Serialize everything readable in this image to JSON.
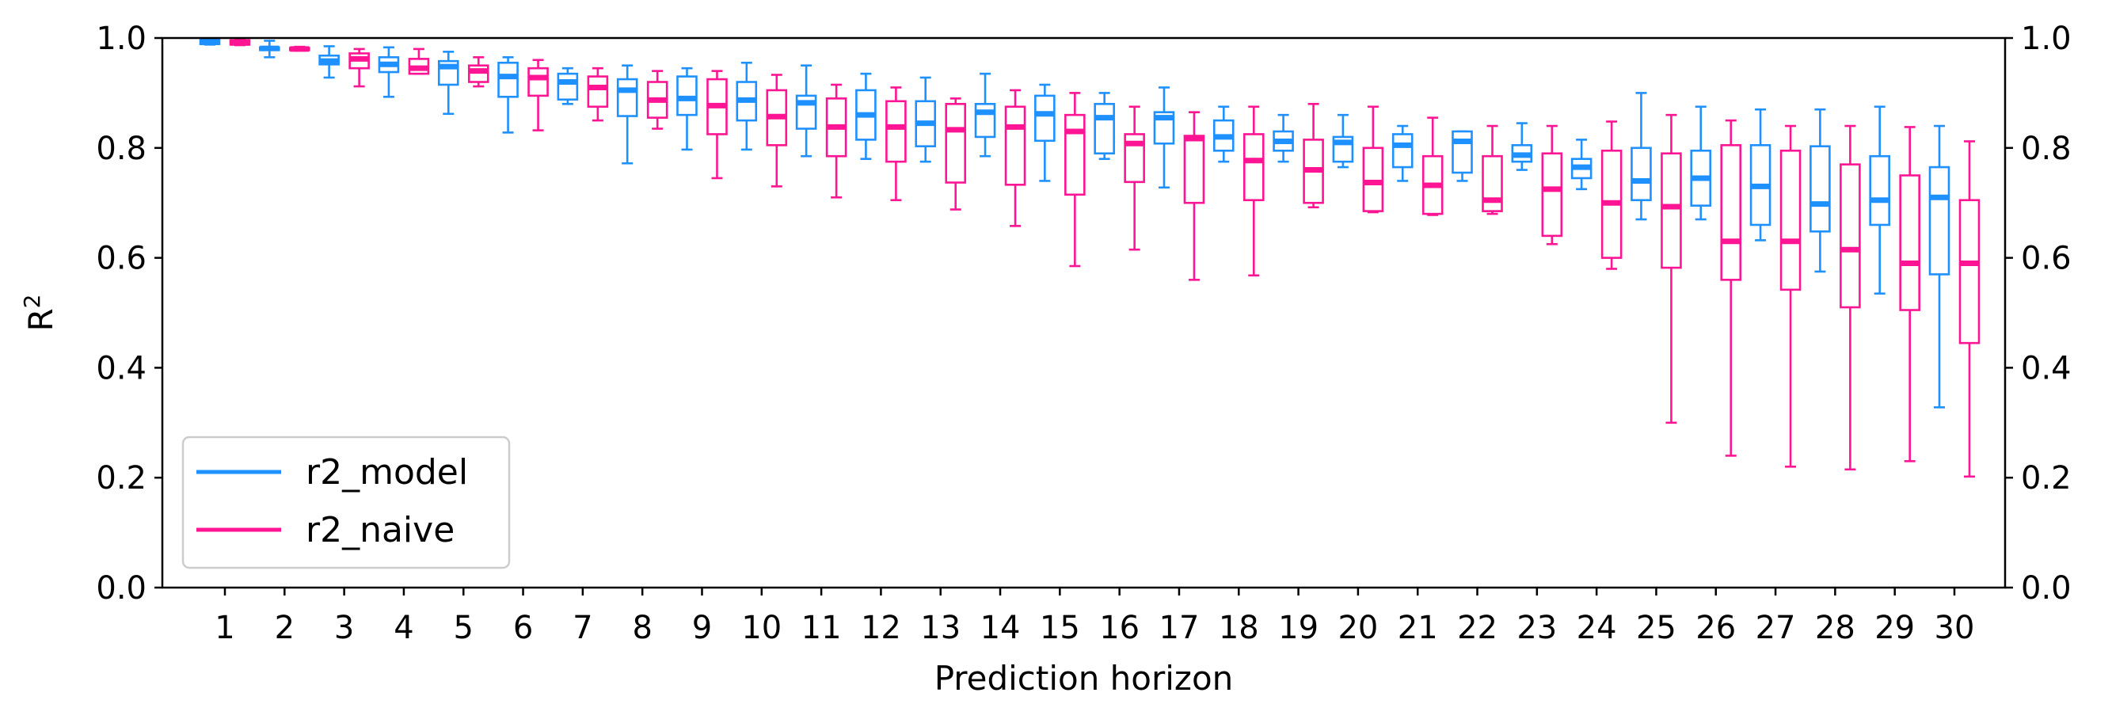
{
  "chart_data": {
    "type": "box",
    "xlabel": "Prediction horizon",
    "ylabel": "R",
    "ylabel_superscript": "2",
    "ylim": [
      0.0,
      1.0
    ],
    "yticks": [
      "0.0",
      "0.2",
      "0.4",
      "0.6",
      "0.8",
      "1.0"
    ],
    "secondary_y_axis": true,
    "grid": false,
    "legend_position": "lower-left",
    "categories": [
      "1",
      "2",
      "3",
      "4",
      "5",
      "6",
      "7",
      "8",
      "9",
      "10",
      "11",
      "12",
      "13",
      "14",
      "15",
      "16",
      "17",
      "18",
      "19",
      "20",
      "21",
      "22",
      "23",
      "24",
      "25",
      "26",
      "27",
      "28",
      "29",
      "30"
    ],
    "series": [
      {
        "name": "r2_model",
        "color": "#1E90FF",
        "boxes": [
          {
            "whislo": 0.988,
            "q1": 0.989,
            "med": 0.992,
            "q3": 0.997,
            "whishi": 0.999
          },
          {
            "whislo": 0.965,
            "q1": 0.978,
            "med": 0.981,
            "q3": 0.983,
            "whishi": 0.995
          },
          {
            "whislo": 0.928,
            "q1": 0.952,
            "med": 0.958,
            "q3": 0.968,
            "whishi": 0.985
          },
          {
            "whislo": 0.893,
            "q1": 0.938,
            "med": 0.952,
            "q3": 0.965,
            "whishi": 0.983
          },
          {
            "whislo": 0.862,
            "q1": 0.915,
            "med": 0.948,
            "q3": 0.958,
            "whishi": 0.975
          },
          {
            "whislo": 0.828,
            "q1": 0.893,
            "med": 0.93,
            "q3": 0.955,
            "whishi": 0.965
          },
          {
            "whislo": 0.88,
            "q1": 0.888,
            "med": 0.92,
            "q3": 0.935,
            "whishi": 0.945
          },
          {
            "whislo": 0.772,
            "q1": 0.858,
            "med": 0.905,
            "q3": 0.925,
            "whishi": 0.95
          },
          {
            "whislo": 0.797,
            "q1": 0.86,
            "med": 0.89,
            "q3": 0.93,
            "whishi": 0.945
          },
          {
            "whislo": 0.797,
            "q1": 0.85,
            "med": 0.887,
            "q3": 0.92,
            "whishi": 0.955
          },
          {
            "whislo": 0.785,
            "q1": 0.835,
            "med": 0.882,
            "q3": 0.895,
            "whishi": 0.95
          },
          {
            "whislo": 0.78,
            "q1": 0.815,
            "med": 0.86,
            "q3": 0.905,
            "whishi": 0.935
          },
          {
            "whislo": 0.775,
            "q1": 0.803,
            "med": 0.845,
            "q3": 0.885,
            "whishi": 0.928
          },
          {
            "whislo": 0.785,
            "q1": 0.82,
            "med": 0.865,
            "q3": 0.88,
            "whishi": 0.935
          },
          {
            "whislo": 0.74,
            "q1": 0.813,
            "med": 0.862,
            "q3": 0.895,
            "whishi": 0.915
          },
          {
            "whislo": 0.78,
            "q1": 0.79,
            "med": 0.855,
            "q3": 0.88,
            "whishi": 0.9
          },
          {
            "whislo": 0.728,
            "q1": 0.808,
            "med": 0.855,
            "q3": 0.865,
            "whishi": 0.91
          },
          {
            "whislo": 0.775,
            "q1": 0.795,
            "med": 0.82,
            "q3": 0.85,
            "whishi": 0.875
          },
          {
            "whislo": 0.775,
            "q1": 0.795,
            "med": 0.812,
            "q3": 0.83,
            "whishi": 0.86
          },
          {
            "whislo": 0.765,
            "q1": 0.775,
            "med": 0.81,
            "q3": 0.82,
            "whishi": 0.86
          },
          {
            "whislo": 0.74,
            "q1": 0.765,
            "med": 0.805,
            "q3": 0.825,
            "whishi": 0.84
          },
          {
            "whislo": 0.74,
            "q1": 0.755,
            "med": 0.812,
            "q3": 0.83,
            "whishi": 0.83
          },
          {
            "whislo": 0.76,
            "q1": 0.775,
            "med": 0.787,
            "q3": 0.805,
            "whishi": 0.845
          },
          {
            "whislo": 0.725,
            "q1": 0.745,
            "med": 0.765,
            "q3": 0.78,
            "whishi": 0.815
          },
          {
            "whislo": 0.67,
            "q1": 0.705,
            "med": 0.74,
            "q3": 0.8,
            "whishi": 0.9
          },
          {
            "whislo": 0.67,
            "q1": 0.695,
            "med": 0.745,
            "q3": 0.795,
            "whishi": 0.875
          },
          {
            "whislo": 0.632,
            "q1": 0.66,
            "med": 0.73,
            "q3": 0.805,
            "whishi": 0.87
          },
          {
            "whislo": 0.575,
            "q1": 0.648,
            "med": 0.698,
            "q3": 0.803,
            "whishi": 0.87
          },
          {
            "whislo": 0.535,
            "q1": 0.66,
            "med": 0.705,
            "q3": 0.785,
            "whishi": 0.875
          },
          {
            "whislo": 0.328,
            "q1": 0.57,
            "med": 0.71,
            "q3": 0.765,
            "whishi": 0.84
          }
        ]
      },
      {
        "name": "r2_naive",
        "color": "#FF1493",
        "boxes": [
          {
            "whislo": 0.987,
            "q1": 0.988,
            "med": 0.991,
            "q3": 0.996,
            "whishi": 0.998
          },
          {
            "whislo": 0.977,
            "q1": 0.978,
            "med": 0.98,
            "q3": 0.982,
            "whishi": 0.984
          },
          {
            "whislo": 0.912,
            "q1": 0.945,
            "med": 0.962,
            "q3": 0.972,
            "whishi": 0.98
          },
          {
            "whislo": 0.935,
            "q1": 0.935,
            "med": 0.945,
            "q3": 0.962,
            "whishi": 0.98
          },
          {
            "whislo": 0.912,
            "q1": 0.92,
            "med": 0.94,
            "q3": 0.95,
            "whishi": 0.965
          },
          {
            "whislo": 0.832,
            "q1": 0.895,
            "med": 0.928,
            "q3": 0.945,
            "whishi": 0.96
          },
          {
            "whislo": 0.85,
            "q1": 0.875,
            "med": 0.91,
            "q3": 0.93,
            "whishi": 0.945
          },
          {
            "whislo": 0.835,
            "q1": 0.855,
            "med": 0.887,
            "q3": 0.92,
            "whishi": 0.94
          },
          {
            "whislo": 0.745,
            "q1": 0.825,
            "med": 0.877,
            "q3": 0.925,
            "whishi": 0.94
          },
          {
            "whislo": 0.73,
            "q1": 0.805,
            "med": 0.857,
            "q3": 0.905,
            "whishi": 0.933
          },
          {
            "whislo": 0.71,
            "q1": 0.785,
            "med": 0.838,
            "q3": 0.89,
            "whishi": 0.915
          },
          {
            "whislo": 0.705,
            "q1": 0.775,
            "med": 0.838,
            "q3": 0.885,
            "whishi": 0.91
          },
          {
            "whislo": 0.688,
            "q1": 0.737,
            "med": 0.833,
            "q3": 0.88,
            "whishi": 0.89
          },
          {
            "whislo": 0.658,
            "q1": 0.733,
            "med": 0.838,
            "q3": 0.875,
            "whishi": 0.905
          },
          {
            "whislo": 0.585,
            "q1": 0.715,
            "med": 0.83,
            "q3": 0.86,
            "whishi": 0.9
          },
          {
            "whislo": 0.615,
            "q1": 0.738,
            "med": 0.808,
            "q3": 0.825,
            "whishi": 0.875
          },
          {
            "whislo": 0.56,
            "q1": 0.7,
            "med": 0.817,
            "q3": 0.822,
            "whishi": 0.865
          },
          {
            "whislo": 0.568,
            "q1": 0.705,
            "med": 0.777,
            "q3": 0.825,
            "whishi": 0.875
          },
          {
            "whislo": 0.692,
            "q1": 0.7,
            "med": 0.76,
            "q3": 0.815,
            "whishi": 0.88
          },
          {
            "whislo": 0.683,
            "q1": 0.685,
            "med": 0.737,
            "q3": 0.8,
            "whishi": 0.875
          },
          {
            "whislo": 0.678,
            "q1": 0.68,
            "med": 0.732,
            "q3": 0.785,
            "whishi": 0.855
          },
          {
            "whislo": 0.68,
            "q1": 0.685,
            "med": 0.705,
            "q3": 0.785,
            "whishi": 0.84
          },
          {
            "whislo": 0.625,
            "q1": 0.64,
            "med": 0.725,
            "q3": 0.79,
            "whishi": 0.84
          },
          {
            "whislo": 0.58,
            "q1": 0.6,
            "med": 0.7,
            "q3": 0.795,
            "whishi": 0.848
          },
          {
            "whislo": 0.3,
            "q1": 0.582,
            "med": 0.693,
            "q3": 0.79,
            "whishi": 0.86
          },
          {
            "whislo": 0.24,
            "q1": 0.56,
            "med": 0.63,
            "q3": 0.805,
            "whishi": 0.85
          },
          {
            "whislo": 0.22,
            "q1": 0.542,
            "med": 0.63,
            "q3": 0.795,
            "whishi": 0.84
          },
          {
            "whislo": 0.215,
            "q1": 0.51,
            "med": 0.615,
            "q3": 0.77,
            "whishi": 0.84
          },
          {
            "whislo": 0.23,
            "q1": 0.505,
            "med": 0.59,
            "q3": 0.75,
            "whishi": 0.838
          },
          {
            "whislo": 0.202,
            "q1": 0.445,
            "med": 0.59,
            "q3": 0.705,
            "whishi": 0.812
          }
        ]
      }
    ]
  }
}
